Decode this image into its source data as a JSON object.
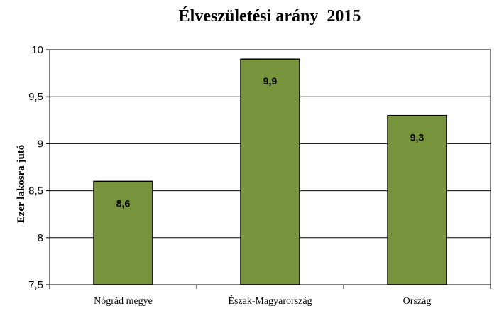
{
  "chart_data": {
    "type": "bar",
    "title": "Élveszületési arány  2015",
    "xlabel": "",
    "ylabel": "Ezer lakosra jutó",
    "categories": [
      "Nógrád megye",
      "Észak-Magyarország",
      "Ország"
    ],
    "values": [
      8.6,
      9.9,
      9.3
    ],
    "data_labels": [
      "8,6",
      "9,9",
      "9,3"
    ],
    "ylim": [
      7.5,
      10
    ],
    "yticks": [
      7.5,
      8,
      8.5,
      9,
      9.5,
      10
    ],
    "ytick_labels": [
      "7,5",
      "8",
      "8,5",
      "9",
      "9,5",
      "10"
    ],
    "grid": true,
    "bar_color": "#77933C"
  }
}
